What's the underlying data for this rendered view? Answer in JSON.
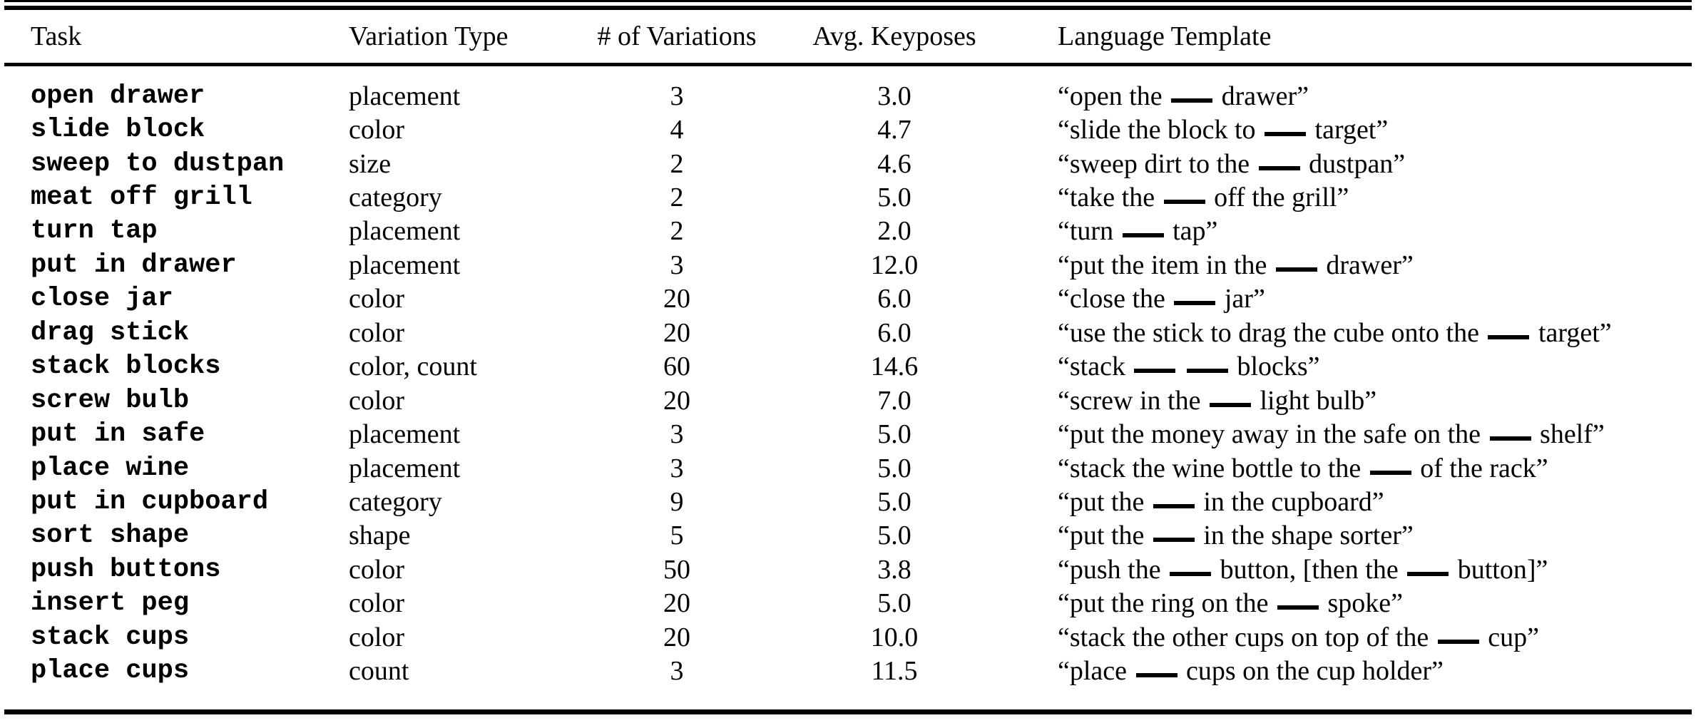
{
  "colors": {
    "background": "#ffffff",
    "text": "#000000",
    "rule": "#000000"
  },
  "table": {
    "columns": [
      {
        "label": "Task",
        "align": "left"
      },
      {
        "label": "Variation Type",
        "align": "left"
      },
      {
        "label": "# of Variations",
        "align": "center"
      },
      {
        "label": "Avg. Keyposes",
        "align": "center"
      },
      {
        "label": "Language Template",
        "align": "left"
      }
    ],
    "blank_token": "__",
    "rows": [
      {
        "task": "open drawer",
        "variation_type": "placement",
        "num_variations": "3",
        "avg_keyposes": "3.0",
        "language_template": "“open the __ drawer”"
      },
      {
        "task": "slide block",
        "variation_type": "color",
        "num_variations": "4",
        "avg_keyposes": "4.7",
        "language_template": "“slide the block to __ target”"
      },
      {
        "task": "sweep to dustpan",
        "variation_type": "size",
        "num_variations": "2",
        "avg_keyposes": "4.6",
        "language_template": "“sweep dirt to the __ dustpan”"
      },
      {
        "task": "meat off grill",
        "variation_type": "category",
        "num_variations": "2",
        "avg_keyposes": "5.0",
        "language_template": "“take the __ off the grill”"
      },
      {
        "task": "turn tap",
        "variation_type": "placement",
        "num_variations": "2",
        "avg_keyposes": "2.0",
        "language_template": "“turn __ tap”"
      },
      {
        "task": "put in drawer",
        "variation_type": "placement",
        "num_variations": "3",
        "avg_keyposes": "12.0",
        "language_template": "“put the item in the __ drawer”"
      },
      {
        "task": "close jar",
        "variation_type": "color",
        "num_variations": "20",
        "avg_keyposes": "6.0",
        "language_template": "“close the __ jar”"
      },
      {
        "task": "drag stick",
        "variation_type": "color",
        "num_variations": "20",
        "avg_keyposes": "6.0",
        "language_template": "“use the stick to drag the cube onto the __ target”"
      },
      {
        "task": "stack blocks",
        "variation_type": "color, count",
        "num_variations": "60",
        "avg_keyposes": "14.6",
        "language_template": "“stack __ __ blocks”"
      },
      {
        "task": "screw bulb",
        "variation_type": "color",
        "num_variations": "20",
        "avg_keyposes": "7.0",
        "language_template": "“screw in the __ light bulb”"
      },
      {
        "task": "put in safe",
        "variation_type": "placement",
        "num_variations": "3",
        "avg_keyposes": "5.0",
        "language_template": "“put the money away in the safe on the __ shelf”"
      },
      {
        "task": "place wine",
        "variation_type": "placement",
        "num_variations": "3",
        "avg_keyposes": "5.0",
        "language_template": "“stack the wine bottle to the __ of the rack”"
      },
      {
        "task": "put in cupboard",
        "variation_type": "category",
        "num_variations": "9",
        "avg_keyposes": "5.0",
        "language_template": "“put the __ in the cupboard”"
      },
      {
        "task": "sort shape",
        "variation_type": "shape",
        "num_variations": "5",
        "avg_keyposes": "5.0",
        "language_template": "“put the __ in the shape sorter”"
      },
      {
        "task": "push buttons",
        "variation_type": "color",
        "num_variations": "50",
        "avg_keyposes": "3.8",
        "language_template": "“push the __ button, [then the __ button]”"
      },
      {
        "task": "insert peg",
        "variation_type": "color",
        "num_variations": "20",
        "avg_keyposes": "5.0",
        "language_template": "“put the ring on the __ spoke”"
      },
      {
        "task": "stack cups",
        "variation_type": "color",
        "num_variations": "20",
        "avg_keyposes": "10.0",
        "language_template": "“stack the other cups on top of the __ cup”"
      },
      {
        "task": "place cups",
        "variation_type": "count",
        "num_variations": "3",
        "avg_keyposes": "11.5",
        "language_template": "“place __ cups on the cup holder”"
      }
    ]
  }
}
